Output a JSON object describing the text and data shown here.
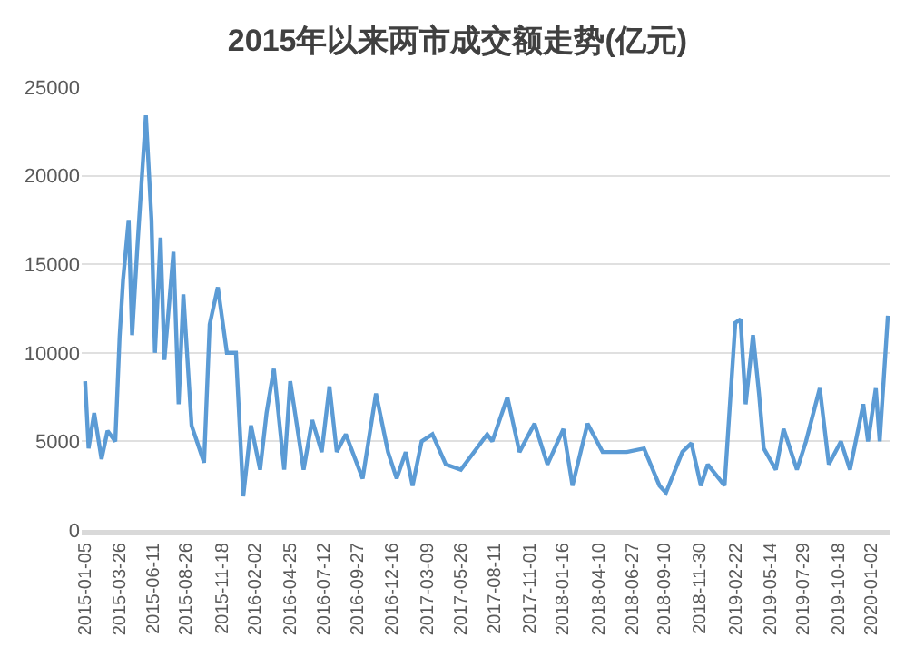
{
  "chart_data": {
    "type": "line",
    "title": "2015年以来两市成交额走势(亿元)",
    "x": [
      "2015-01-05",
      "2015-01-13",
      "2015-01-26",
      "2015-02-12",
      "2015-02-26",
      "2015-03-16",
      "2015-03-26",
      "2015-04-03",
      "2015-04-16",
      "2015-04-24",
      "2015-05-06",
      "2015-05-26",
      "2015-06-08",
      "2015-06-16",
      "2015-06-29",
      "2015-07-08",
      "2015-07-29",
      "2015-08-10",
      "2015-08-21",
      "2015-09-09",
      "2015-10-08",
      "2015-10-21",
      "2015-11-09",
      "2015-11-30",
      "2015-12-21",
      "2016-01-07",
      "2016-01-25",
      "2016-02-15",
      "2016-03-01",
      "2016-03-18",
      "2016-04-11",
      "2016-04-25",
      "2016-05-26",
      "2016-06-15",
      "2016-07-07",
      "2016-07-25",
      "2016-08-11",
      "2016-09-01",
      "2016-10-10",
      "2016-11-10",
      "2016-12-08",
      "2016-12-28",
      "2017-01-18",
      "2017-02-03",
      "2017-02-24",
      "2017-03-21",
      "2017-04-21",
      "2017-05-26",
      "2017-07-26",
      "2017-08-07",
      "2017-09-11",
      "2017-10-09",
      "2017-11-13",
      "2017-12-13",
      "2018-01-19",
      "2018-02-09",
      "2018-03-16",
      "2018-04-20",
      "2018-06-15",
      "2018-07-25",
      "2018-08-30",
      "2018-09-14",
      "2018-10-22",
      "2018-11-12",
      "2018-12-04",
      "2018-12-20",
      "2019-01-28",
      "2019-02-22",
      "2019-03-06",
      "2019-03-18",
      "2019-04-04",
      "2019-04-18",
      "2019-04-29",
      "2019-05-27",
      "2019-06-14",
      "2019-07-15",
      "2019-08-05",
      "2019-09-06",
      "2019-09-27",
      "2019-10-25",
      "2019-11-15",
      "2019-12-16",
      "2019-12-27",
      "2020-01-14",
      "2020-01-23",
      "2020-02-11"
    ],
    "series": [
      {
        "color": "#5b9bd5",
        "values": [
          8400,
          4600,
          6600,
          4000,
          5600,
          5000,
          10900,
          14100,
          17500,
          11000,
          15900,
          23400,
          17500,
          10000,
          16500,
          9600,
          15700,
          7100,
          13300,
          5900,
          3800,
          11600,
          13700,
          10000,
          10000,
          1900,
          5900,
          3400,
          6600,
          9100,
          3400,
          8400,
          3400,
          6200,
          4400,
          8100,
          4400,
          5400,
          2900,
          7700,
          4400,
          2900,
          4400,
          2500,
          5000,
          5400,
          3700,
          3400,
          5400,
          5000,
          7500,
          4400,
          6000,
          3700,
          5700,
          2500,
          6000,
          4400,
          4400,
          4600,
          2500,
          2100,
          4400,
          4900,
          2500,
          3700,
          2500,
          11700,
          11900,
          7100,
          11000,
          7700,
          4600,
          3400,
          5700,
          3400,
          5000,
          8000,
          3700,
          5000,
          3400,
          7100,
          5000,
          8000,
          5000,
          12100
        ]
      }
    ],
    "xlim": [
      "2014-12-28",
      "2020-02-15"
    ],
    "xticks": [
      {
        "value": "2015-01-05",
        "label": "2015-01-05"
      },
      {
        "value": "2015-03-26",
        "label": "2015-03-26"
      },
      {
        "value": "2015-06-11",
        "label": "2015-06-11"
      },
      {
        "value": "2015-08-26",
        "label": "2015-08-26"
      },
      {
        "value": "2015-11-18",
        "label": "2015-11-18"
      },
      {
        "value": "2016-02-02",
        "label": "2016-02-02"
      },
      {
        "value": "2016-04-25",
        "label": "2016-04-25"
      },
      {
        "value": "2016-07-12",
        "label": "2016-07-12"
      },
      {
        "value": "2016-09-27",
        "label": "2016-09-27"
      },
      {
        "value": "2016-12-16",
        "label": "2016-12-16"
      },
      {
        "value": "2017-03-09",
        "label": "2017-03-09"
      },
      {
        "value": "2017-05-26",
        "label": "2017-05-26"
      },
      {
        "value": "2017-08-11",
        "label": "2017-08-11"
      },
      {
        "value": "2017-11-01",
        "label": "2017-11-01"
      },
      {
        "value": "2018-01-16",
        "label": "2018-01-16"
      },
      {
        "value": "2018-04-10",
        "label": "2018-04-10"
      },
      {
        "value": "2018-06-27",
        "label": "2018-06-27"
      },
      {
        "value": "2018-09-10",
        "label": "2018-09-10"
      },
      {
        "value": "2018-11-30",
        "label": "2018-11-30"
      },
      {
        "value": "2019-02-22",
        "label": "2019-02-22"
      },
      {
        "value": "2019-05-14",
        "label": "2019-05-14"
      },
      {
        "value": "2019-07-29",
        "label": "2019-07-29"
      },
      {
        "value": "2019-10-18",
        "label": "2019-10-18"
      },
      {
        "value": "2020-01-02",
        "label": "2020-01-02"
      }
    ],
    "ylim": [
      0,
      25000
    ],
    "yticks": [
      0,
      5000,
      10000,
      15000,
      20000,
      25000
    ],
    "grid": "y",
    "marker": "none",
    "line_style": "solid"
  }
}
